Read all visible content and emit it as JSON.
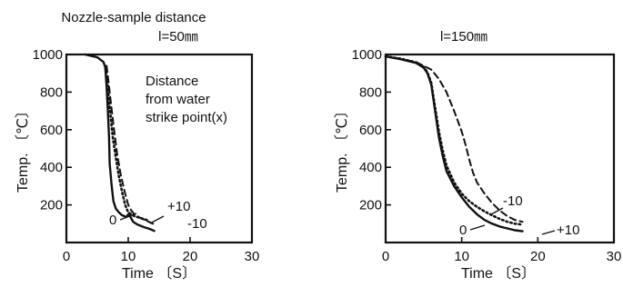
{
  "chart_data": [
    {
      "type": "line",
      "title": "Nozzle-sample distance",
      "subtitle": "l=50㎜",
      "xlabel": "Time 〔S〕",
      "ylabel": "Temp. 〔℃〕",
      "xlim": [
        0,
        30
      ],
      "ylim": [
        0,
        1000
      ],
      "xticks": [
        "0",
        "10",
        "20",
        "30"
      ],
      "yticks": [
        "1000",
        "800",
        "600",
        "400",
        "200"
      ],
      "annotation": [
        "Distance",
        "from water",
        "strike point(x)"
      ],
      "series": [
        {
          "name": "0",
          "style": "solid",
          "x": [
            3.0,
            5.0,
            6.0,
            6.3,
            6.5,
            6.7,
            6.9,
            7.0,
            7.3,
            7.6,
            8.0,
            8.5,
            9.0,
            9.4,
            9.6,
            9.8,
            10.0,
            10.3,
            10.8,
            11.5,
            12.5,
            13.5,
            14.2
          ],
          "y": [
            1000,
            985,
            960,
            930,
            830,
            700,
            560,
            420,
            310,
            220,
            180,
            160,
            145,
            140,
            135,
            140,
            150,
            140,
            110,
            95,
            82,
            72,
            62
          ]
        },
        {
          "name": "+10",
          "style": "dotted",
          "x": [
            6.3,
            6.6,
            7.0,
            7.5,
            8.0,
            8.5,
            9.0,
            9.5,
            10.0,
            10.5,
            11.0,
            12.0,
            13.0
          ],
          "y": [
            930,
            850,
            720,
            560,
            450,
            350,
            270,
            200,
            160,
            150,
            140,
            130,
            120
          ]
        },
        {
          "name": "-10",
          "style": "dashed",
          "x": [
            6.5,
            6.8,
            7.2,
            7.7,
            8.2,
            8.8,
            9.5,
            10.0,
            10.5,
            11.0,
            12.0,
            13.0,
            14.0
          ],
          "y": [
            940,
            860,
            740,
            600,
            470,
            360,
            260,
            200,
            170,
            150,
            130,
            115,
            100
          ]
        }
      ],
      "series_labels": [
        "0",
        "+10",
        "-10"
      ]
    },
    {
      "type": "line",
      "title": "l=150㎜",
      "xlabel": "Time 〔S〕",
      "ylabel": "Temp. 〔℃〕",
      "xlim": [
        0,
        30
      ],
      "ylim": [
        0,
        1000
      ],
      "xticks": [
        "0",
        "10",
        "20",
        "30"
      ],
      "yticks": [
        "1000",
        "800",
        "600",
        "400",
        "200"
      ],
      "series": [
        {
          "name": "0",
          "style": "solid",
          "x": [
            0,
            2,
            4,
            5,
            5.5,
            6,
            6.5,
            7,
            7.5,
            8,
            9,
            10,
            11,
            12,
            13,
            14,
            15,
            16,
            17,
            18
          ],
          "y": [
            990,
            975,
            955,
            930,
            900,
            840,
            700,
            560,
            460,
            380,
            300,
            240,
            190,
            150,
            120,
            100,
            85,
            75,
            65,
            60
          ]
        },
        {
          "name": "+10",
          "style": "dotted",
          "x": [
            0,
            2,
            4,
            5,
            5.5,
            6,
            6.5,
            7,
            7.5,
            8,
            9,
            10,
            11,
            12,
            13,
            14,
            15,
            16,
            17,
            18
          ],
          "y": [
            990,
            978,
            958,
            935,
            905,
            850,
            720,
            590,
            490,
            410,
            320,
            260,
            220,
            190,
            165,
            145,
            125,
            110,
            100,
            95
          ]
        },
        {
          "name": "-10",
          "style": "dashed",
          "x": [
            0,
            2,
            4,
            6,
            7,
            8,
            9,
            10,
            10.5,
            11,
            11.5,
            12,
            13,
            14,
            15,
            16,
            17,
            18
          ],
          "y": [
            990,
            975,
            960,
            920,
            870,
            800,
            700,
            590,
            520,
            440,
            370,
            320,
            260,
            210,
            170,
            140,
            120,
            110
          ]
        }
      ],
      "series_labels": [
        "-10",
        "0",
        "+10"
      ]
    }
  ]
}
